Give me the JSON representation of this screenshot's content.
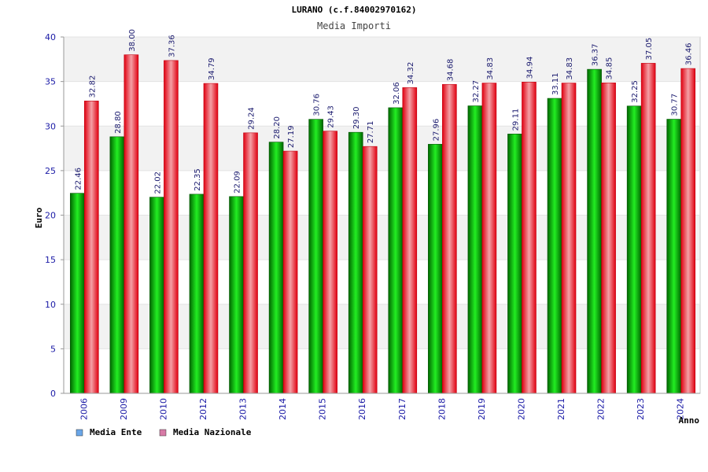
{
  "chart_data": {
    "type": "bar",
    "title": "LURANO (c.f.84002970162)",
    "subtitle": "Media Importi",
    "xlabel": "Anno",
    "ylabel": "Euro",
    "ylim": [
      0,
      40
    ],
    "yticks": [
      0,
      5,
      10,
      15,
      20,
      25,
      30,
      35,
      40
    ],
    "categories": [
      "2006",
      "2009",
      "2010",
      "2012",
      "2013",
      "2014",
      "2015",
      "2016",
      "2017",
      "2018",
      "2019",
      "2020",
      "2021",
      "2022",
      "2023",
      "2024"
    ],
    "series": [
      {
        "name": "Media Ente",
        "color": "#00aa00",
        "values": [
          22.46,
          28.8,
          22.02,
          22.35,
          22.09,
          28.2,
          30.76,
          29.3,
          32.06,
          27.96,
          32.27,
          29.11,
          33.11,
          36.37,
          32.25,
          30.77
        ],
        "labels": [
          "22.46",
          "28.80",
          "22.02",
          "22.35",
          "22.09",
          "28.20",
          "30.76",
          "29.30",
          "32.06",
          "27.96",
          "32.27",
          "29.11",
          "33.11",
          "36.37",
          "32.25",
          "30.77"
        ]
      },
      {
        "name": "Media Nazionale",
        "color": "#e8202a",
        "values": [
          32.82,
          38.0,
          37.36,
          34.79,
          29.24,
          27.19,
          29.43,
          27.71,
          34.32,
          34.68,
          34.83,
          34.94,
          34.83,
          34.85,
          37.05,
          36.46
        ],
        "labels": [
          "32.82",
          "38.00",
          "37.36",
          "34.79",
          "29.24",
          "27.19",
          "29.43",
          "27.71",
          "34.32",
          "34.68",
          "34.83",
          "34.94",
          "34.83",
          "34.85",
          "37.05",
          "36.46"
        ]
      }
    ],
    "legend": {
      "position": "bottom-left",
      "items": [
        {
          "label": "Media Ente",
          "swatch": "#6aa6e8"
        },
        {
          "label": "Media Nazionale",
          "swatch": "#d77aa6"
        }
      ]
    },
    "grid": true
  }
}
